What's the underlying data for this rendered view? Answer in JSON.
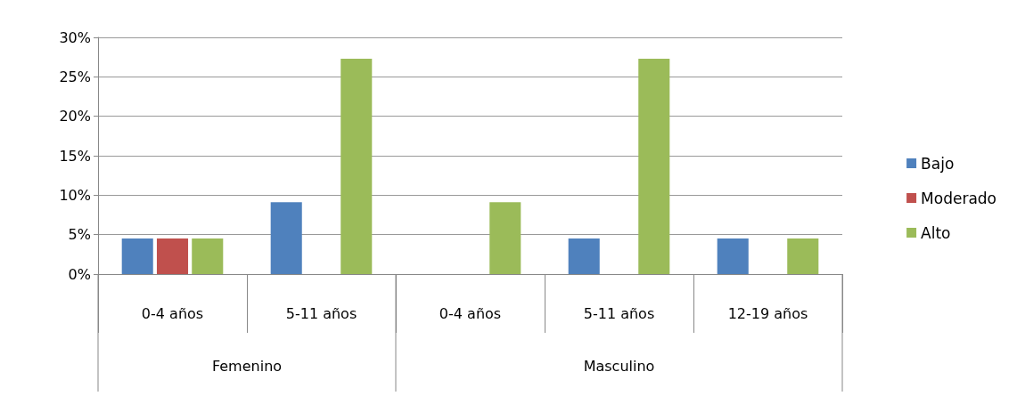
{
  "chart_data": {
    "type": "bar",
    "categories": [
      "0-4 años",
      "5-11 años",
      "0-4 años",
      "5-11 años",
      "12-19 años"
    ],
    "annotations": [
      "Femenino",
      "Masculino"
    ],
    "series": [
      {
        "name": "Bajo",
        "color": "#4f81bd",
        "values": [
          4.5,
          9.1,
          null,
          4.5,
          4.5
        ]
      },
      {
        "name": "Moderado",
        "color": "#c0504d",
        "values": [
          4.5,
          null,
          null,
          null,
          null
        ]
      },
      {
        "name": "Alto",
        "color": "#9bbb59",
        "values": [
          4.5,
          27.3,
          9.1,
          27.3,
          4.5
        ]
      }
    ],
    "ylim": [
      0,
      30
    ],
    "yticks": [
      {
        "value": 0,
        "label": "0%"
      },
      {
        "value": 5,
        "label": "5%"
      },
      {
        "value": 10,
        "label": "10%"
      },
      {
        "value": 15,
        "label": "15%"
      },
      {
        "value": 20,
        "label": "20%"
      },
      {
        "value": 25,
        "label": "25%"
      },
      {
        "value": 30,
        "label": "30%"
      }
    ],
    "grid": "y",
    "legend": "right"
  }
}
